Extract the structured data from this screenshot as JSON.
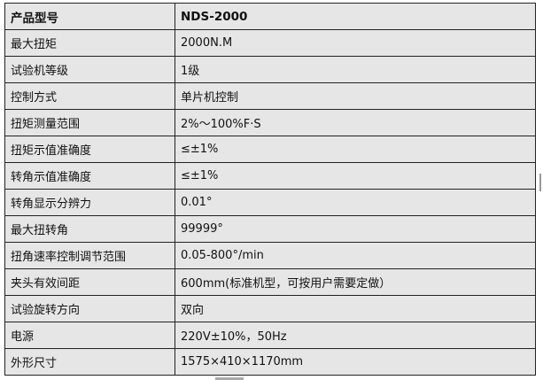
{
  "spec_table": {
    "rows": [
      {
        "label": "产品型号",
        "value": "NDS-2000"
      },
      {
        "label": "最大扭矩",
        "value": "2000N.M"
      },
      {
        "label": "试验机等级",
        "value": "1级"
      },
      {
        "label": "控制方式",
        "value": "单片机控制"
      },
      {
        "label": "扭矩测量范围",
        "value": "2%～100%F·S"
      },
      {
        "label": "扭矩示值准确度",
        "value": "≤±1%"
      },
      {
        "label": "转角示值准确度",
        "value": "≤±1%"
      },
      {
        "label": "转角显示分辨力",
        "value": "0.01°"
      },
      {
        "label": "最大扭转角",
        "value": "99999°"
      },
      {
        "label": "扭角速率控制调节范围",
        "value": "0.05-800°/min"
      },
      {
        "label": "夹头有效间距",
        "value": "600mm(标准机型，可按用户需要定做）"
      },
      {
        "label": "试验旋转方向",
        "value": "双向"
      },
      {
        "label": "电源",
        "value": "220V±10%，50Hz"
      },
      {
        "label": "外形尺寸",
        "value": "1575×410×1170mm"
      }
    ]
  }
}
